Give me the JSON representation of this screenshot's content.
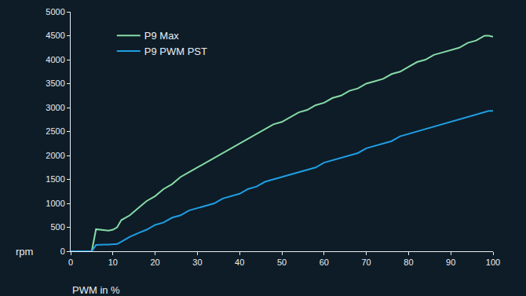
{
  "chart_data": {
    "type": "line",
    "x_label": "PWM in %",
    "y_label": "rpm",
    "x": [
      0,
      2,
      4,
      5,
      6,
      7,
      8,
      9,
      10,
      11,
      12,
      14,
      16,
      18,
      20,
      22,
      24,
      26,
      28,
      30,
      32,
      34,
      36,
      38,
      40,
      42,
      44,
      46,
      48,
      50,
      52,
      54,
      56,
      58,
      60,
      62,
      64,
      66,
      68,
      70,
      72,
      74,
      76,
      78,
      80,
      82,
      84,
      86,
      88,
      90,
      92,
      94,
      96,
      98,
      99,
      100
    ],
    "series": [
      {
        "name": "P9 Max",
        "color": "#86dba6",
        "values": [
          0,
          0,
          0,
          0,
          460,
          450,
          440,
          430,
          450,
          500,
          650,
          750,
          900,
          1050,
          1150,
          1300,
          1400,
          1550,
          1650,
          1750,
          1850,
          1950,
          2050,
          2150,
          2250,
          2350,
          2450,
          2550,
          2650,
          2700,
          2800,
          2900,
          2950,
          3050,
          3100,
          3200,
          3250,
          3350,
          3400,
          3500,
          3550,
          3600,
          3700,
          3750,
          3850,
          3950,
          4000,
          4100,
          4150,
          4200,
          4250,
          4350,
          4400,
          4500,
          4500,
          4480
        ]
      },
      {
        "name": "P9 PWM PST",
        "color": "#1f9ee3",
        "values": [
          0,
          0,
          0,
          0,
          130,
          140,
          140,
          140,
          140,
          150,
          200,
          300,
          380,
          450,
          550,
          600,
          700,
          750,
          850,
          900,
          950,
          1000,
          1100,
          1150,
          1200,
          1300,
          1350,
          1450,
          1500,
          1550,
          1600,
          1650,
          1700,
          1750,
          1850,
          1900,
          1950,
          2000,
          2050,
          2150,
          2200,
          2250,
          2300,
          2400,
          2450,
          2500,
          2550,
          2600,
          2650,
          2700,
          2750,
          2800,
          2850,
          2900,
          2930,
          2930
        ]
      }
    ],
    "xlim": [
      0,
      100
    ],
    "xticks": [
      0,
      10,
      20,
      30,
      40,
      50,
      60,
      70,
      80,
      90,
      100
    ],
    "ylim": [
      0,
      5000
    ],
    "yticks": [
      0,
      500,
      1000,
      1500,
      2000,
      2500,
      3000,
      3500,
      4000,
      4500,
      5000
    ],
    "grid": false,
    "legend": "upper left"
  }
}
